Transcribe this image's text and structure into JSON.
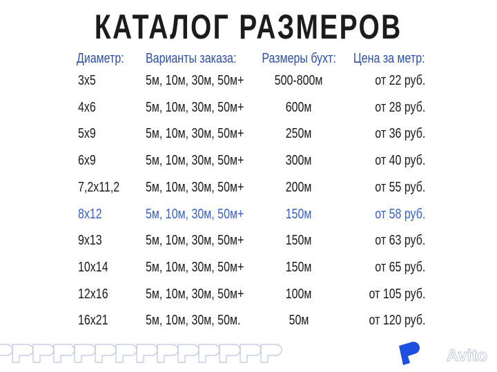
{
  "title": "КАТАЛОГ РАЗМЕРОВ",
  "headers": [
    "Диаметр:",
    "Варианты заказа:",
    "Размеры бухт:",
    "Цена за метр:"
  ],
  "rows": [
    [
      "3x5",
      "5м, 10м, 30м, 50м+",
      "500-800м",
      "от 22 руб."
    ],
    [
      "4x6",
      "5м, 10м, 30м, 50м+",
      "600м",
      "от 28 руб."
    ],
    [
      "5x9",
      "5м, 10м, 30м, 50м+",
      "250м",
      "от 36 руб."
    ],
    [
      "6x9",
      "5м, 10м, 30м, 50м+",
      "300м",
      "от 40 руб."
    ],
    [
      "7,2x11,2",
      "5м, 10м, 30м, 50м+",
      "200м",
      "от 55 руб."
    ],
    [
      "8x12",
      "5м, 10м, 30м, 50м+",
      "150м",
      "от 58 руб."
    ],
    [
      "9x13",
      "5м, 10м, 30м, 50м+",
      "150м",
      "от 63 руб."
    ],
    [
      "10x14",
      "5м, 10м, 30м, 50м+",
      "150м",
      "от 65 руб."
    ],
    [
      "12x16",
      "5м, 10м, 30м, 50м+",
      "100м",
      "от 105 руб."
    ],
    [
      "16x21",
      "5м, 10м, 30м, 50м.",
      "50м",
      "от 120 руб."
    ]
  ],
  "highlighted_row": 5,
  "colors": {
    "header": "#2d4fa8",
    "highlight": "#3a5fc8",
    "logo": "#1f4fe0",
    "pattern": "#b9c3e6"
  },
  "watermark": "Avito"
}
